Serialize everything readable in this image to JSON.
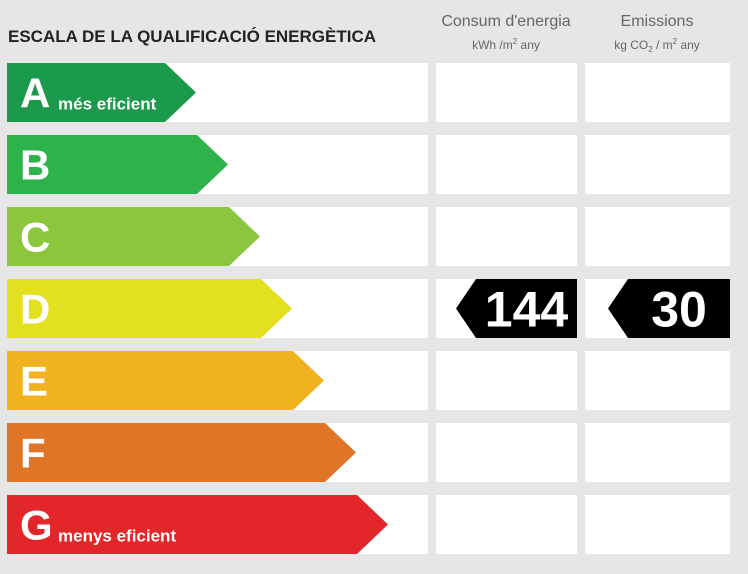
{
  "title": "ESCALA DE LA QUALIFICACIÓ ENERGÈTICA",
  "columns": [
    {
      "name": "Consum d'energia",
      "unit": [
        {
          "text": "kWh /m",
          "pos": "base"
        },
        {
          "text": "2",
          "pos": "sup"
        },
        {
          "text": " any",
          "pos": "base"
        }
      ]
    },
    {
      "name": "Emissions",
      "unit": [
        {
          "text": "kg CO",
          "pos": "base"
        },
        {
          "text": "2",
          "pos": "sub"
        },
        {
          "text": " / m",
          "pos": "base"
        },
        {
          "text": "2",
          "pos": "sup"
        },
        {
          "text": " any",
          "pos": "base"
        }
      ]
    }
  ],
  "rows": [
    {
      "letter": "A",
      "color": "#1a9a4a",
      "label": "més eficient"
    },
    {
      "letter": "B",
      "color": "#2db34a"
    },
    {
      "letter": "C",
      "color": "#8cc63f"
    },
    {
      "letter": "D",
      "color": "#e3e11f",
      "consum": 144,
      "emissions": 30
    },
    {
      "letter": "E",
      "color": "#f0b21e"
    },
    {
      "letter": "F",
      "color": "#e07427"
    },
    {
      "letter": "G",
      "color": "#e3262a",
      "label": "menys eficient"
    }
  ]
}
